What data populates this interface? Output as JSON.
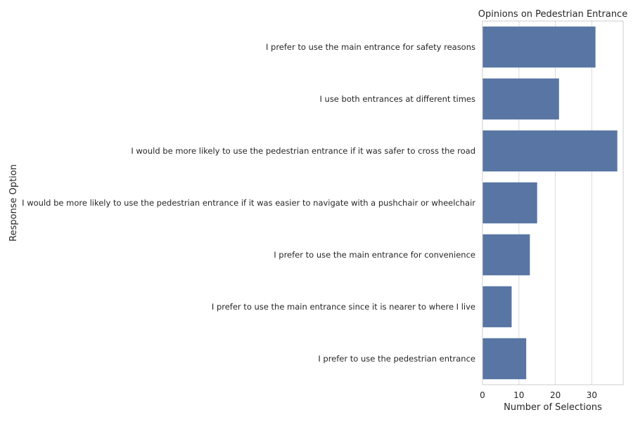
{
  "chart_data": {
    "type": "bar",
    "orientation": "horizontal",
    "title": "Opinions on Pedestrian Entrance",
    "xlabel": "Number of Selections",
    "ylabel": "Response Option",
    "categories": [
      "I prefer to use the main entrance for safety reasons",
      "I use both entrances at different times",
      "I would be more likely to use the pedestrian entrance if it was safer to cross the road",
      "I would be more likely to use the pedestrian entrance if it was easier to navigate with a pushchair or wheelchair",
      "I prefer to use the main entrance for convenience",
      "I prefer to use the main entrance since it is nearer to where I live",
      "I prefer to use the pedestrian entrance"
    ],
    "values": [
      31,
      21,
      37,
      15,
      13,
      8,
      12
    ],
    "xlim": [
      0,
      38.6
    ],
    "xticks": [
      0,
      10,
      20,
      30
    ],
    "grid": "vertical",
    "bar_color": "#5875a4"
  }
}
